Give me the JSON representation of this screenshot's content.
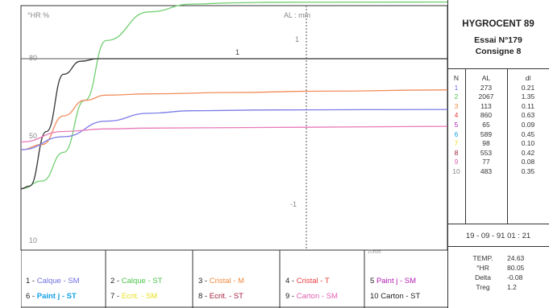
{
  "panel": {
    "title": "HYGROCENT 89",
    "line2": "Essai N°179",
    "line3": "Consigne 8",
    "table_headers": [
      "N",
      "AL",
      "dl"
    ],
    "rows": [
      {
        "n": "1",
        "al": "273",
        "dl": "0.21"
      },
      {
        "n": "2",
        "al": "2067",
        "dl": "1.35"
      },
      {
        "n": "3",
        "al": "113",
        "dl": "0.11"
      },
      {
        "n": "4",
        "al": "860",
        "dl": "0.63"
      },
      {
        "n": "5",
        "al": "65",
        "dl": "0.09"
      },
      {
        "n": "6",
        "al": "589",
        "dl": "0.45"
      },
      {
        "n": "7",
        "al": "98",
        "dl": "0.10"
      },
      {
        "n": "8",
        "al": "553",
        "dl": "0.42"
      },
      {
        "n": "9",
        "al": "77",
        "dl": "0.08"
      },
      {
        "n": "10",
        "al": "483",
        "dl": "0.35"
      }
    ],
    "date": "19 - 09 - 91   01 : 21",
    "measurements": [
      {
        "k": "TEMP.",
        "v": "24.63"
      },
      {
        "k": "°HR",
        "v": "80.05"
      },
      {
        "k": "Delta",
        "v": "-0.08"
      },
      {
        "k": "Treg",
        "v": "1.2"
      }
    ]
  },
  "legend": [
    {
      "num": "1 -",
      "name": "Calque - SM",
      "color": "#6f6fe0"
    },
    {
      "num": "2 -",
      "name": "Calque - ST",
      "color": "#4cc24c"
    },
    {
      "num": "3 -",
      "name": "Cristal - M",
      "color": "#f08a40"
    },
    {
      "num": "4 -",
      "name": "Cristal - T",
      "color": "#e84040"
    },
    {
      "num": "5",
      "name": "Paint j - SM",
      "color": "#b020b0"
    },
    {
      "num": "6 -",
      "name": "Paint j - ST",
      "color": "#12a0e8"
    },
    {
      "num": "7 -",
      "name": "Ecrit. - SM",
      "color": "#e8e020"
    },
    {
      "num": "8 -",
      "name": "Ecrit. - ST",
      "color": "#a02040"
    },
    {
      "num": "9 -",
      "name": "Carton - SM",
      "color": "#e060b0"
    },
    {
      "num": "10",
      "name": "Carton - ST",
      "color": "#222222"
    }
  ],
  "colors": {
    "calque_sm": "#7b7be6",
    "calque_st": "#6fcf6f",
    "cristal_m": "#f28c5a",
    "pink": "#e878b8",
    "black": "#333333",
    "grid": "#555555"
  },
  "chart_data": {
    "type": "line",
    "title": "",
    "left_axis_label": "°HR %",
    "right_axis_label": "AL  :  mm",
    "left_ticks": [
      "80",
      "50",
      "10"
    ],
    "right_ticks": [
      "1",
      "-1"
    ],
    "scale_note": "10mm",
    "marker_label": "1",
    "series": [
      {
        "key": "calque_st",
        "points": [
          [
            0,
            30
          ],
          [
            0.05,
            33
          ],
          [
            0.1,
            44
          ],
          [
            0.15,
            64
          ],
          [
            0.2,
            87
          ],
          [
            0.3,
            98
          ],
          [
            0.4,
            101
          ],
          [
            0.5,
            101.5
          ],
          [
            0.6,
            101.7
          ],
          [
            1,
            101.8
          ]
        ]
      },
      {
        "key": "black",
        "points": [
          [
            0,
            30
          ],
          [
            0.02,
            31
          ],
          [
            0.06,
            52
          ],
          [
            0.1,
            74
          ],
          [
            0.14,
            79
          ],
          [
            0.18,
            80
          ],
          [
            1,
            80
          ]
        ]
      },
      {
        "key": "cristal_m",
        "points": [
          [
            0,
            45
          ],
          [
            0.05,
            47
          ],
          [
            0.1,
            58
          ],
          [
            0.15,
            64
          ],
          [
            0.2,
            66
          ],
          [
            0.3,
            66.5
          ],
          [
            0.5,
            67
          ],
          [
            0.7,
            67.5
          ],
          [
            1,
            68
          ]
        ]
      },
      {
        "key": "calque_sm",
        "points": [
          [
            0,
            45
          ],
          [
            0.1,
            50
          ],
          [
            0.2,
            56
          ],
          [
            0.3,
            59
          ],
          [
            0.4,
            60
          ],
          [
            0.6,
            60.3
          ],
          [
            1,
            60.5
          ]
        ]
      },
      {
        "key": "pink",
        "points": [
          [
            0,
            48
          ],
          [
            0.1,
            52
          ],
          [
            0.2,
            53
          ],
          [
            0.3,
            53.3
          ],
          [
            0.6,
            53.6
          ],
          [
            1,
            54
          ]
        ]
      }
    ]
  }
}
